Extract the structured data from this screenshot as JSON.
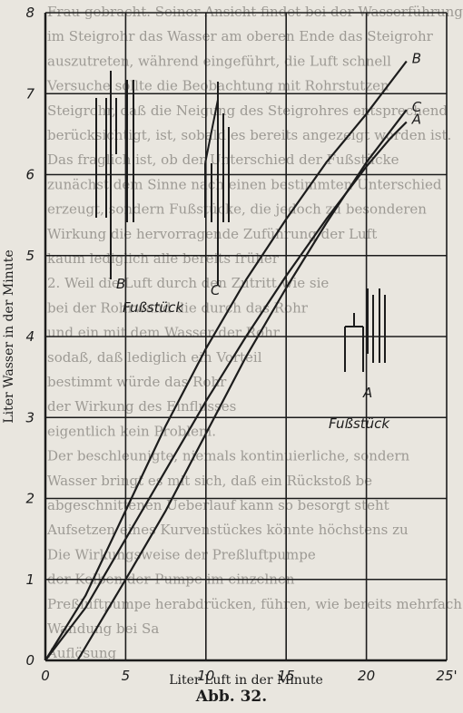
{
  "background_text": [
    "Frau gebracht. Seiner Ansicht findet bei der Wasserführung",
    "im Steigrohr das Wasser am oberen Ende das Steigrohr",
    "auszutreten, während eingeführt, die Luft schnell",
    "Versuche sollte die Beobachtung mit Rohrstutzen",
    "Steigrohr, daß die Neigung des Steigrohres entsprechend",
    "berücksichtigt, ist, sobald es bereits angezeigt worden ist.",
    "Das fraglich ist, ob der Unterschied der Fußstücke",
    "zunächst dem Sinne nach einen bestimmten Unterschied",
    "erzeugt, sondern Fußstücke, die jedoch zu besonderen",
    "Wirkung die hervorragende Zuführung der Luft",
    "kaum lediglich alle bereits früher",
    "2. Weil die Luft durch den Zutritt wie sie",
    "bei der Rohrwand die durch das Rohr",
    "und ein mit dem Wasser der Rohr",
    "sodaß, daß lediglich ein Vorteil",
    "bestimmt würde das Rohr",
    "der Wirkung des Einflusses",
    "eigentlich kein Problem.",
    "Der beschleunigte, niemals kontinuierliche, sondern",
    "Wasser bringt es mit sich, daß ein Rückstoß be",
    "abgeschnittenen Ueberlauf kann so besorgt steht",
    "Aufsetzen eines Kurvenstückes könnte höchstens zu",
    "Die Wirkungsweise der Preßluftpumpe",
    "der Kolben der Pumpe im einzelnen",
    "Preßluftpumpe herabdrücken, führen, wie bereits mehrfach",
    "Wandung bei Sa",
    "Auflösung"
  ],
  "chart_data": {
    "type": "line",
    "title": "",
    "xlabel": "Liter Luft in der Minute",
    "ylabel": "Liter Wasser in der Minute",
    "xlim": [
      0,
      25
    ],
    "ylim": [
      0,
      8
    ],
    "x_ticks": [
      "0",
      "5",
      "10",
      "15",
      "20",
      "25'"
    ],
    "y_ticks": [
      "0",
      "1",
      "2",
      "3",
      "4",
      "5",
      "6",
      "7",
      "8"
    ],
    "grid": true,
    "series": [
      {
        "name": "A",
        "x": [
          0,
          2.5,
          5,
          7.5,
          10,
          12.5,
          15,
          17.5,
          20,
          21.5,
          22.5
        ],
        "y": [
          0,
          0.65,
          1.5,
          2.35,
          3.2,
          4.0,
          4.75,
          5.45,
          6.1,
          6.45,
          6.65
        ]
      },
      {
        "name": "B",
        "x": [
          0,
          2.5,
          5,
          7.5,
          10,
          12.5,
          15,
          17.5,
          20,
          22.5
        ],
        "y": [
          0,
          0.8,
          1.85,
          2.9,
          3.85,
          4.7,
          5.45,
          6.15,
          6.75,
          7.4
        ]
      },
      {
        "name": "C",
        "x": [
          2.0,
          5,
          7.5,
          10,
          12.5,
          15,
          17.5,
          20,
          22.5
        ],
        "y": [
          0,
          1.0,
          1.85,
          2.8,
          3.75,
          4.6,
          5.4,
          6.15,
          6.8
        ]
      }
    ],
    "annotations": [
      {
        "text": "B",
        "near": "lower-left sketch"
      },
      {
        "text": "Fußstück",
        "near": "sketch B/C"
      },
      {
        "text": "C",
        "near": "upper-left sketch"
      },
      {
        "text": "A",
        "near": "curve A, center-right"
      },
      {
        "text": "Fußstück",
        "near": "sketch A"
      }
    ]
  },
  "caption": "Abb. 32."
}
